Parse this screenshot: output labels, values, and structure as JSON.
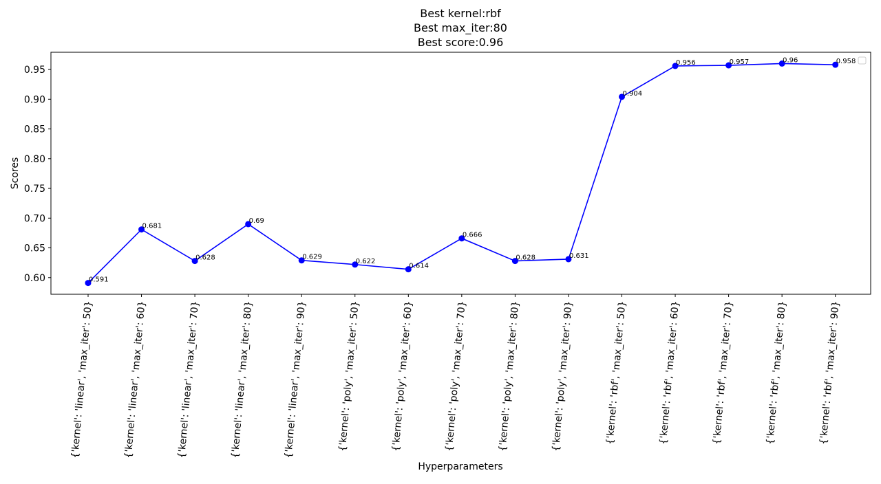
{
  "chart_data": {
    "type": "line",
    "title_lines": [
      "Best kernel:rbf",
      "Best max_iter:80",
      "Best score:0.96"
    ],
    "xlabel": "Hyperparameters",
    "ylabel": "Scores",
    "ylim": [
      0.572,
      0.979
    ],
    "yticks": [
      "0.60",
      "0.65",
      "0.70",
      "0.75",
      "0.80",
      "0.85",
      "0.90",
      "0.95"
    ],
    "ytick_values": [
      0.6,
      0.65,
      0.7,
      0.75,
      0.8,
      0.85,
      0.9,
      0.95
    ],
    "categories": [
      "{'kernel': 'linear', 'max_iter': 50}",
      "{'kernel': 'linear', 'max_iter': 60}",
      "{'kernel': 'linear', 'max_iter': 70}",
      "{'kernel': 'linear', 'max_iter': 80}",
      "{'kernel': 'linear', 'max_iter': 90}",
      "{'kernel': 'poly', 'max_iter': 50}",
      "{'kernel': 'poly', 'max_iter': 60}",
      "{'kernel': 'poly', 'max_iter': 70}",
      "{'kernel': 'poly', 'max_iter': 80}",
      "{'kernel': 'poly', 'max_iter': 90}",
      "{'kernel': 'rbf', 'max_iter': 50}",
      "{'kernel': 'rbf', 'max_iter': 60}",
      "{'kernel': 'rbf', 'max_iter': 70}",
      "{'kernel': 'rbf', 'max_iter': 80}",
      "{'kernel': 'rbf', 'max_iter': 90}"
    ],
    "values": [
      0.591,
      0.681,
      0.628,
      0.69,
      0.629,
      0.622,
      0.614,
      0.666,
      0.628,
      0.631,
      0.904,
      0.956,
      0.957,
      0.96,
      0.958
    ],
    "data_labels": [
      "0.591",
      "0.681",
      "0.628",
      "0.69",
      "0.629",
      "0.622",
      "0.614",
      "0.666",
      "0.628",
      "0.631",
      "0.904",
      "0.956",
      "0.957",
      "0.96",
      "0.958"
    ],
    "line_color": "#0000ff",
    "marker": "circle",
    "grid": false,
    "legend": "upper right, empty"
  }
}
